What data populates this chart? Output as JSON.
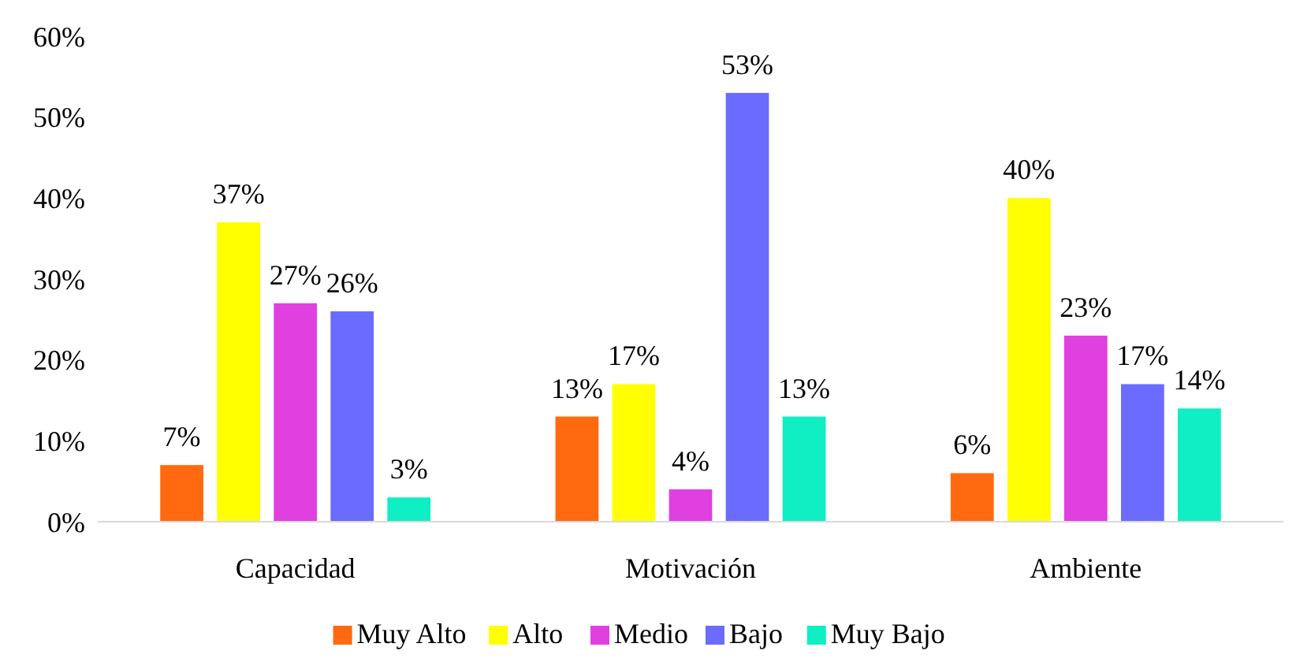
{
  "chart_data": {
    "type": "bar",
    "categories": [
      "Capacidad",
      "Motivación",
      "Ambiente"
    ],
    "series": [
      {
        "name": "Muy Alto",
        "color": "#ff6a10",
        "values": [
          7,
          13,
          6
        ],
        "value_labels": [
          "7%",
          "13%",
          "6%"
        ]
      },
      {
        "name": "Alto",
        "color": "#ffff00",
        "values": [
          37,
          17,
          40
        ],
        "value_labels": [
          "37%",
          "17%",
          "40%"
        ]
      },
      {
        "name": "Medio",
        "color": "#e040e0",
        "values": [
          27,
          4,
          23
        ],
        "value_labels": [
          "27%",
          "4%",
          "23%"
        ]
      },
      {
        "name": "Bajo",
        "color": "#6b6bff",
        "values": [
          26,
          53,
          17
        ],
        "value_labels": [
          "26%",
          "53%",
          "17%"
        ]
      },
      {
        "name": "Muy Bajo",
        "color": "#10eec4",
        "values": [
          3,
          13,
          14
        ],
        "value_labels": [
          "3%",
          "13%",
          "14%"
        ]
      }
    ],
    "ylim": [
      0,
      60
    ],
    "yticks": [
      {
        "value": 0,
        "label": "0%"
      },
      {
        "value": 10,
        "label": "10%"
      },
      {
        "value": 20,
        "label": "20%"
      },
      {
        "value": 30,
        "label": "30%"
      },
      {
        "value": 40,
        "label": "40%"
      },
      {
        "value": 50,
        "label": "50%"
      },
      {
        "value": 60,
        "label": "60%"
      }
    ],
    "grid": false,
    "legend": "bottom"
  }
}
